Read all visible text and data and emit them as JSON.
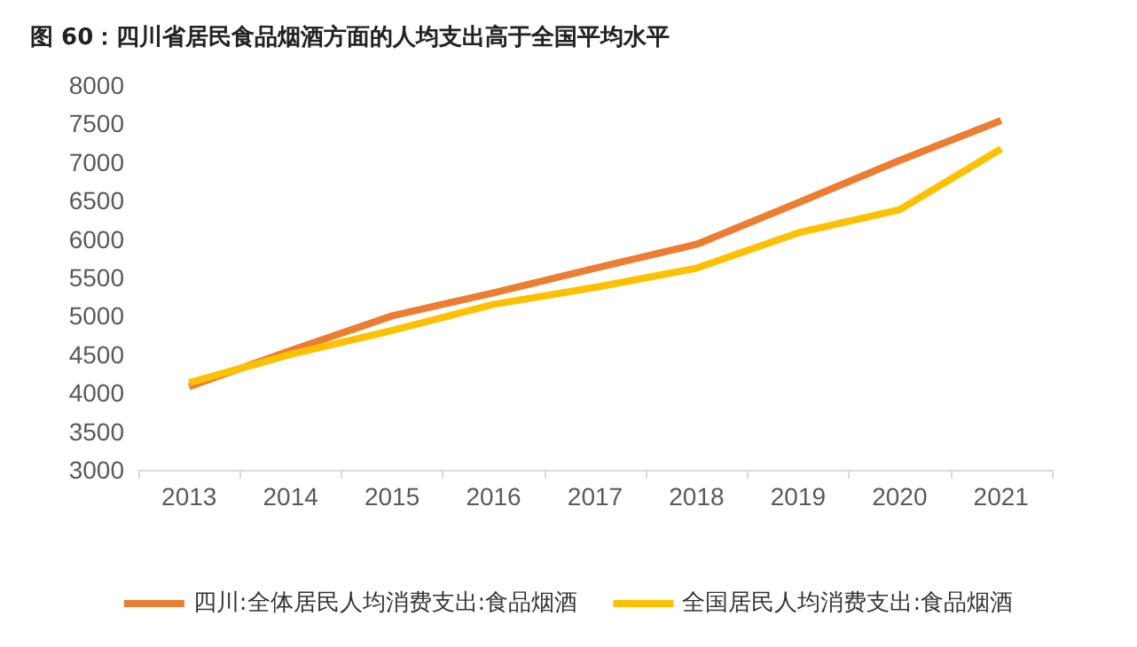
{
  "chart_data": {
    "type": "line",
    "title": "图 60：四川省居民食品烟酒方面的人均支出高于全国平均水平",
    "categories": [
      "2013",
      "2014",
      "2015",
      "2016",
      "2017",
      "2018",
      "2019",
      "2020",
      "2021"
    ],
    "series": [
      {
        "name": "四川:全体居民人均消费支出:食品烟酒",
        "color": "#ed7d31",
        "values": [
          4080,
          4550,
          5000,
          5300,
          5620,
          5930,
          6470,
          7020,
          7540
        ]
      },
      {
        "name": "全国居民人均消费支出:食品烟酒",
        "color": "#ffc000",
        "values": [
          4130,
          4500,
          4810,
          5150,
          5370,
          5620,
          6080,
          6380,
          7170
        ]
      }
    ],
    "ylim": [
      3000,
      8000
    ],
    "yticks": [
      3000,
      3500,
      4000,
      4500,
      5000,
      5500,
      6000,
      6500,
      7000,
      7500,
      8000
    ],
    "grid": false,
    "legend": "bottom",
    "marker": "none",
    "line_style": "solid"
  }
}
